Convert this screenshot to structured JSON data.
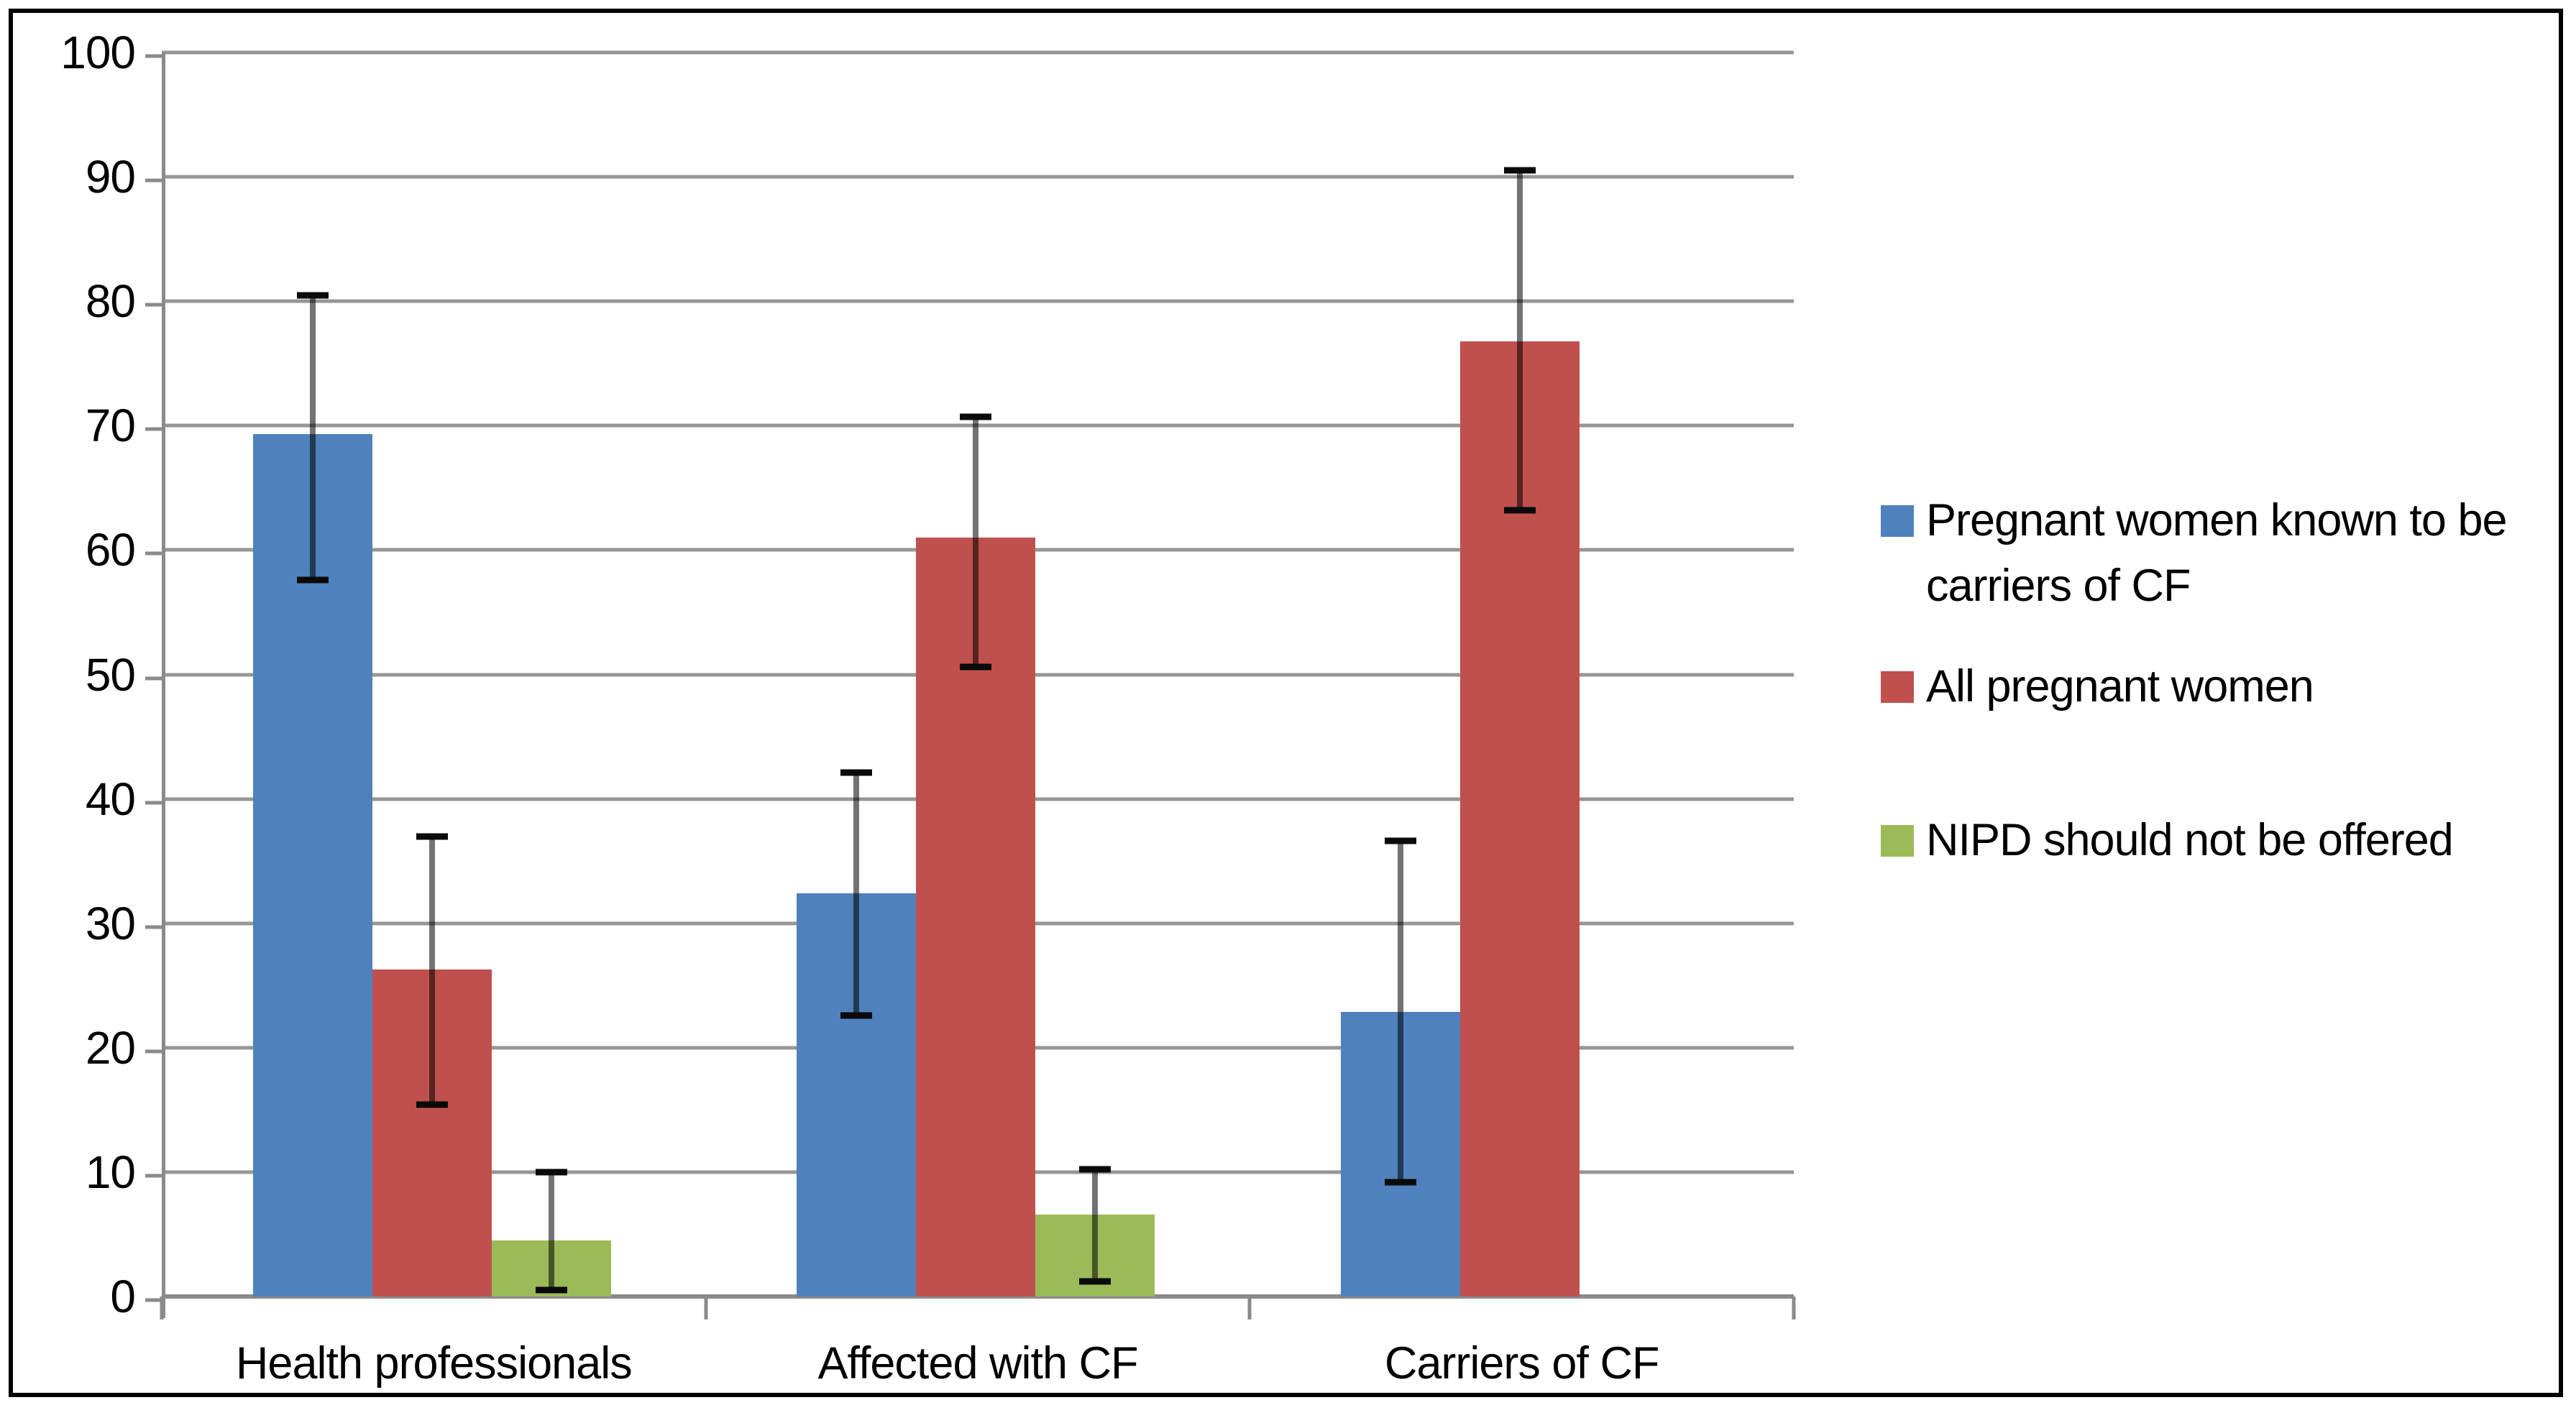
{
  "chart_data": {
    "type": "bar",
    "title": "",
    "xlabel": "",
    "ylabel": "",
    "ylim": [
      0,
      100
    ],
    "ytick_step": 10,
    "grid": true,
    "legend_position": "right",
    "categories": [
      "Health professionals",
      "Affected with CF",
      "Carriers of CF"
    ],
    "series": [
      {
        "name": "Pregnant women known to be carriers of CF",
        "legend_lines": [
          "Pregnant women known  to be",
          "carriers of CF"
        ],
        "color": "#4F81BD",
        "values": [
          69.3,
          32.4,
          22.9
        ],
        "error_low": [
          57.6,
          22.6,
          9.2
        ],
        "error_high": [
          80.5,
          42.1,
          36.6
        ]
      },
      {
        "name": "All pregnant women",
        "legend_lines": [
          "All pregnant women"
        ],
        "color": "#C0504D",
        "values": [
          26.3,
          61.0,
          76.8
        ],
        "error_low": [
          15.4,
          50.6,
          63.2
        ],
        "error_high": [
          37.0,
          70.7,
          90.5
        ]
      },
      {
        "name": "NIPD should not be offered",
        "legend_lines": [
          "NIPD should not be offered"
        ],
        "color": "#9BBB59",
        "values": [
          4.5,
          6.6,
          null
        ],
        "error_low": [
          0.5,
          1.2,
          null
        ],
        "error_high": [
          10.0,
          10.2,
          null
        ]
      }
    ],
    "colors": {
      "gridline": "#969696",
      "axis": "#8a8a8a",
      "error_bar": "#0a0a0a",
      "text": "#000000",
      "frame_border": "#000000",
      "background": "#ffffff"
    }
  }
}
